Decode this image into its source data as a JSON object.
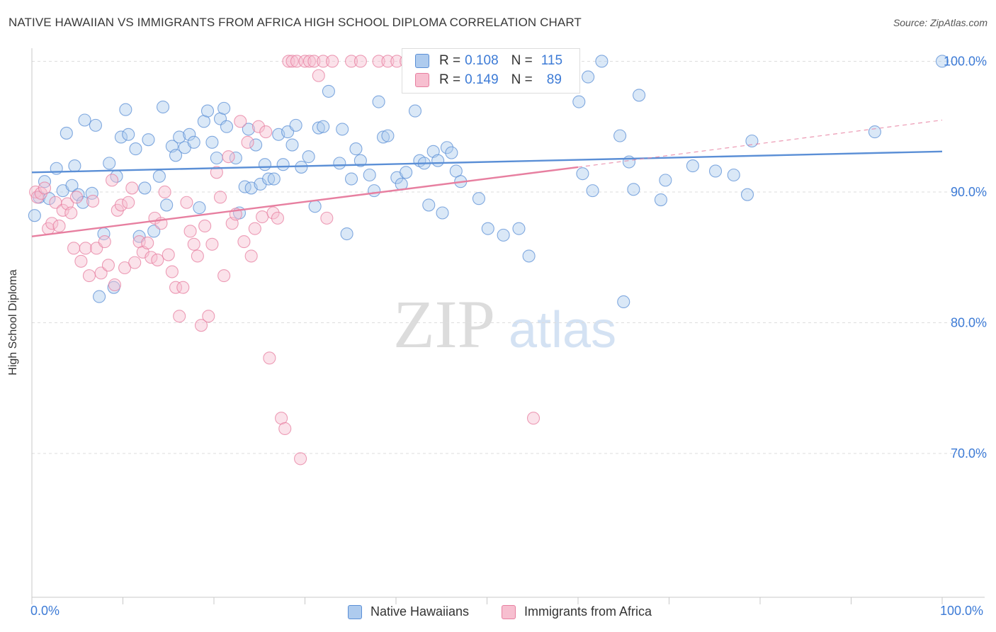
{
  "header": {
    "title": "NATIVE HAWAIIAN VS IMMIGRANTS FROM AFRICA HIGH SCHOOL DIPLOMA CORRELATION CHART",
    "source": "Source: ZipAtlas.com"
  },
  "legend": {
    "r_label": "R =",
    "n_label": "N =",
    "rows": [
      {
        "r": "0.108",
        "n": "115",
        "color": "#5b8fd6"
      },
      {
        "r": "0.149",
        "n": "89",
        "color": "#e77fa0"
      }
    ]
  },
  "bottom_legend": [
    {
      "label": "Native Hawaiians",
      "color": "#5b8fd6"
    },
    {
      "label": "Immigrants from Africa",
      "color": "#e77fa0"
    }
  ],
  "watermark": {
    "zip": "ZIP",
    "atlas": "atlas"
  },
  "chart_data": {
    "type": "scatter",
    "title": "NATIVE HAWAIIAN VS IMMIGRANTS FROM AFRICA HIGH SCHOOL DIPLOMA CORRELATION CHART",
    "xlabel": "",
    "ylabel": "High School Diploma",
    "xlim": [
      0,
      100
    ],
    "ylim": [
      59,
      101
    ],
    "x_tick_labels": [
      "0.0%",
      "100.0%"
    ],
    "y_ticks": [
      70,
      80,
      90,
      100
    ],
    "y_tick_labels": [
      "70.0%",
      "80.0%",
      "90.0%",
      "100.0%"
    ],
    "grid": "horizontal dashed",
    "legend_position": "top-center",
    "series": [
      {
        "name": "Native Hawaiians",
        "color": "#5b8fd6",
        "trend": {
          "x": [
            0,
            100
          ],
          "y": [
            91.5,
            93.1
          ],
          "style": "solid"
        },
        "points": [
          [
            0.3,
            88.2
          ],
          [
            0.8,
            89.6
          ],
          [
            1.4,
            90.8
          ],
          [
            1.9,
            89.5
          ],
          [
            2.7,
            91.8
          ],
          [
            3.4,
            90.1
          ],
          [
            3.8,
            94.5
          ],
          [
            4.4,
            90.5
          ],
          [
            4.7,
            92.0
          ],
          [
            5.1,
            89.8
          ],
          [
            5.6,
            89.2
          ],
          [
            5.8,
            95.5
          ],
          [
            6.6,
            89.9
          ],
          [
            7.0,
            95.1
          ],
          [
            7.4,
            82.0
          ],
          [
            7.9,
            86.8
          ],
          [
            8.5,
            92.2
          ],
          [
            9.0,
            82.7
          ],
          [
            9.3,
            91.2
          ],
          [
            9.8,
            94.2
          ],
          [
            10.3,
            96.3
          ],
          [
            10.6,
            94.4
          ],
          [
            11.4,
            93.3
          ],
          [
            11.8,
            86.6
          ],
          [
            12.4,
            90.3
          ],
          [
            12.8,
            94.0
          ],
          [
            13.4,
            87.0
          ],
          [
            14.0,
            91.2
          ],
          [
            14.4,
            96.5
          ],
          [
            14.8,
            89.0
          ],
          [
            15.4,
            93.5
          ],
          [
            15.8,
            92.8
          ],
          [
            16.2,
            94.2
          ],
          [
            16.8,
            93.4
          ],
          [
            17.3,
            94.4
          ],
          [
            17.8,
            93.8
          ],
          [
            18.4,
            88.8
          ],
          [
            18.9,
            95.4
          ],
          [
            19.3,
            96.2
          ],
          [
            19.8,
            93.8
          ],
          [
            20.3,
            92.6
          ],
          [
            20.7,
            95.6
          ],
          [
            21.1,
            96.4
          ],
          [
            21.4,
            95.0
          ],
          [
            22.4,
            92.6
          ],
          [
            22.8,
            88.4
          ],
          [
            23.4,
            90.4
          ],
          [
            23.8,
            94.8
          ],
          [
            24.1,
            90.3
          ],
          [
            24.6,
            93.6
          ],
          [
            25.1,
            90.6
          ],
          [
            25.6,
            92.1
          ],
          [
            26.0,
            91.0
          ],
          [
            26.6,
            91.0
          ],
          [
            27.1,
            94.4
          ],
          [
            27.6,
            92.1
          ],
          [
            28.1,
            94.6
          ],
          [
            28.6,
            93.6
          ],
          [
            29.0,
            95.1
          ],
          [
            29.6,
            91.9
          ],
          [
            30.4,
            92.7
          ],
          [
            31.1,
            88.9
          ],
          [
            31.5,
            94.9
          ],
          [
            32.0,
            95.0
          ],
          [
            32.6,
            97.7
          ],
          [
            33.8,
            92.2
          ],
          [
            34.1,
            94.8
          ],
          [
            34.6,
            86.8
          ],
          [
            35.1,
            91.0
          ],
          [
            35.6,
            93.3
          ],
          [
            36.1,
            92.4
          ],
          [
            37.1,
            91.3
          ],
          [
            37.6,
            90.1
          ],
          [
            38.1,
            96.9
          ],
          [
            38.6,
            94.2
          ],
          [
            39.1,
            94.3
          ],
          [
            40.1,
            91.1
          ],
          [
            40.6,
            90.6
          ],
          [
            41.1,
            91.5
          ],
          [
            42.1,
            96.2
          ],
          [
            42.6,
            92.4
          ],
          [
            43.1,
            92.2
          ],
          [
            43.6,
            89.0
          ],
          [
            44.1,
            93.1
          ],
          [
            44.6,
            92.4
          ],
          [
            45.1,
            88.4
          ],
          [
            45.6,
            93.4
          ],
          [
            46.1,
            93.0
          ],
          [
            46.6,
            91.6
          ],
          [
            47.1,
            90.8
          ],
          [
            49.1,
            89.5
          ],
          [
            50.1,
            87.2
          ],
          [
            51.8,
            86.7
          ],
          [
            53.5,
            87.2
          ],
          [
            54.6,
            85.1
          ],
          [
            57.6,
            100.0
          ],
          [
            60.1,
            96.9
          ],
          [
            60.5,
            91.4
          ],
          [
            61.1,
            98.8
          ],
          [
            61.6,
            90.1
          ],
          [
            62.6,
            100.0
          ],
          [
            64.6,
            94.3
          ],
          [
            65.0,
            81.6
          ],
          [
            65.6,
            92.3
          ],
          [
            66.1,
            90.2
          ],
          [
            66.7,
            97.4
          ],
          [
            69.1,
            89.4
          ],
          [
            69.6,
            90.9
          ],
          [
            72.6,
            92.0
          ],
          [
            75.1,
            91.6
          ],
          [
            77.1,
            91.3
          ],
          [
            78.6,
            89.8
          ],
          [
            79.1,
            93.9
          ],
          [
            92.6,
            94.6
          ],
          [
            100.0,
            100.0
          ]
        ]
      },
      {
        "name": "Immigrants from Africa",
        "color": "#e77fa0",
        "trend": {
          "x": [
            0,
            60
          ],
          "y": [
            86.6,
            91.9
          ],
          "style": "solid",
          "extension": {
            "x": [
              60,
              100
            ],
            "y": [
              91.9,
              95.5
            ],
            "style": "dashed"
          }
        },
        "points": [
          [
            0.4,
            90.0
          ],
          [
            0.6,
            89.6
          ],
          [
            1.0,
            89.9
          ],
          [
            1.4,
            90.3
          ],
          [
            1.8,
            87.2
          ],
          [
            2.2,
            87.6
          ],
          [
            2.6,
            89.2
          ],
          [
            3.0,
            87.4
          ],
          [
            3.4,
            88.6
          ],
          [
            3.9,
            89.1
          ],
          [
            4.3,
            88.4
          ],
          [
            4.6,
            85.7
          ],
          [
            4.9,
            89.6
          ],
          [
            5.4,
            84.7
          ],
          [
            5.9,
            85.7
          ],
          [
            6.3,
            83.6
          ],
          [
            6.7,
            89.3
          ],
          [
            7.1,
            85.7
          ],
          [
            7.6,
            83.8
          ],
          [
            8.0,
            86.2
          ],
          [
            8.4,
            84.4
          ],
          [
            8.8,
            90.9
          ],
          [
            9.1,
            82.9
          ],
          [
            9.4,
            88.6
          ],
          [
            9.8,
            89.0
          ],
          [
            10.2,
            84.2
          ],
          [
            10.6,
            89.2
          ],
          [
            11.0,
            90.3
          ],
          [
            11.3,
            84.6
          ],
          [
            11.8,
            86.2
          ],
          [
            12.2,
            85.4
          ],
          [
            12.7,
            86.1
          ],
          [
            13.1,
            85.0
          ],
          [
            13.5,
            88.0
          ],
          [
            13.8,
            84.8
          ],
          [
            14.2,
            87.6
          ],
          [
            14.6,
            90.0
          ],
          [
            15.0,
            85.2
          ],
          [
            15.4,
            83.9
          ],
          [
            15.8,
            82.7
          ],
          [
            16.2,
            80.5
          ],
          [
            16.6,
            82.7
          ],
          [
            17.0,
            89.2
          ],
          [
            17.4,
            87.0
          ],
          [
            17.8,
            86.0
          ],
          [
            18.2,
            85.1
          ],
          [
            18.6,
            79.8
          ],
          [
            19.0,
            87.4
          ],
          [
            19.4,
            80.5
          ],
          [
            19.8,
            86.0
          ],
          [
            20.3,
            91.5
          ],
          [
            20.7,
            89.6
          ],
          [
            21.1,
            83.6
          ],
          [
            21.6,
            92.7
          ],
          [
            22.0,
            87.6
          ],
          [
            22.4,
            88.3
          ],
          [
            22.9,
            95.4
          ],
          [
            23.3,
            86.2
          ],
          [
            23.7,
            93.8
          ],
          [
            24.1,
            85.1
          ],
          [
            24.5,
            87.2
          ],
          [
            24.9,
            95.0
          ],
          [
            25.3,
            88.1
          ],
          [
            25.7,
            94.6
          ],
          [
            26.1,
            77.3
          ],
          [
            26.5,
            88.4
          ],
          [
            27.0,
            88.0
          ],
          [
            27.4,
            72.7
          ],
          [
            27.8,
            71.9
          ],
          [
            28.2,
            100.0
          ],
          [
            28.6,
            100.0
          ],
          [
            29.1,
            100.0
          ],
          [
            29.5,
            69.6
          ],
          [
            30.0,
            100.0
          ],
          [
            30.5,
            100.0
          ],
          [
            31.0,
            100.0
          ],
          [
            31.5,
            98.9
          ],
          [
            32.0,
            100.0
          ],
          [
            32.4,
            88.0
          ],
          [
            33.0,
            100.0
          ],
          [
            35.1,
            100.0
          ],
          [
            36.1,
            100.0
          ],
          [
            38.1,
            100.0
          ],
          [
            39.1,
            100.0
          ],
          [
            40.1,
            100.0
          ],
          [
            41.1,
            100.0
          ],
          [
            42.6,
            100.0
          ],
          [
            45.1,
            100.0
          ],
          [
            55.1,
            72.7
          ]
        ]
      }
    ]
  }
}
